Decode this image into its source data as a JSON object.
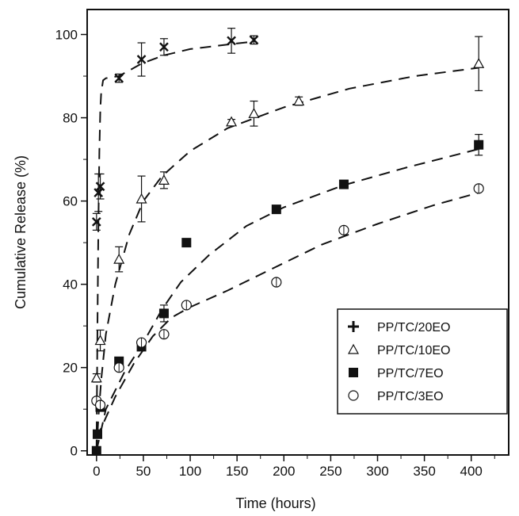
{
  "chart_data": {
    "type": "scatter",
    "title": "",
    "xlabel": "Time (hours)",
    "ylabel": "Cumulative Release (%)",
    "xlim": [
      -10,
      440
    ],
    "ylim": [
      -1,
      106
    ],
    "xticks": [
      0,
      50,
      100,
      150,
      200,
      250,
      300,
      350,
      400
    ],
    "yticks": [
      0,
      20,
      40,
      60,
      80,
      100
    ],
    "legend_position": "bottom-right",
    "series": [
      {
        "name": "PP/TC/20EO",
        "marker": "cross",
        "points": [
          {
            "x": 0,
            "y": 55,
            "err": 2
          },
          {
            "x": 2,
            "y": 62,
            "err": 4.5
          },
          {
            "x": 4,
            "y": 63.5,
            "err": 3
          },
          {
            "x": 24,
            "y": 89.5,
            "err": 1
          },
          {
            "x": 48,
            "y": 94,
            "err": 4
          },
          {
            "x": 72,
            "y": 97,
            "err": 2
          },
          {
            "x": 144,
            "y": 98.5,
            "err": 3
          },
          {
            "x": 168,
            "y": 98.7,
            "err": 1
          }
        ],
        "fit": [
          [
            0,
            0
          ],
          [
            1,
            30
          ],
          [
            2,
            55
          ],
          [
            3,
            72
          ],
          [
            4,
            82
          ],
          [
            5,
            86
          ],
          [
            7,
            89
          ],
          [
            10,
            89.5
          ],
          [
            24,
            90
          ],
          [
            48,
            93
          ],
          [
            72,
            95
          ],
          [
            100,
            96.5
          ],
          [
            144,
            97.7
          ],
          [
            168,
            98.3
          ]
        ]
      },
      {
        "name": "PP/TC/10EO",
        "marker": "triangle",
        "points": [
          {
            "x": 0,
            "y": 17.5,
            "err": 1
          },
          {
            "x": 4,
            "y": 26.5,
            "err": 2.5
          },
          {
            "x": 24,
            "y": 46,
            "err": 3
          },
          {
            "x": 48,
            "y": 60.5,
            "err": 5.5
          },
          {
            "x": 72,
            "y": 65,
            "err": 2
          },
          {
            "x": 144,
            "y": 79,
            "err": 0.6
          },
          {
            "x": 168,
            "y": 81,
            "err": 3
          },
          {
            "x": 216,
            "y": 84,
            "err": 1
          },
          {
            "x": 408,
            "y": 93,
            "err": 6.5
          }
        ],
        "fit": [
          [
            0,
            0
          ],
          [
            2,
            8
          ],
          [
            5,
            17
          ],
          [
            10,
            28
          ],
          [
            20,
            40
          ],
          [
            35,
            52
          ],
          [
            50,
            60
          ],
          [
            70,
            66
          ],
          [
            100,
            72
          ],
          [
            140,
            77.5
          ],
          [
            200,
            82.5
          ],
          [
            270,
            87
          ],
          [
            340,
            90
          ],
          [
            408,
            92
          ]
        ]
      },
      {
        "name": "PP/TC/7EO",
        "marker": "square",
        "points": [
          {
            "x": 0,
            "y": 0
          },
          {
            "x": 1,
            "y": 4
          },
          {
            "x": 4,
            "y": 10.5
          },
          {
            "x": 24,
            "y": 21.5
          },
          {
            "x": 48,
            "y": 25
          },
          {
            "x": 72,
            "y": 33,
            "err": 2
          },
          {
            "x": 96,
            "y": 50
          },
          {
            "x": 192,
            "y": 58
          },
          {
            "x": 264,
            "y": 64
          },
          {
            "x": 408,
            "y": 73.5,
            "err": 2.5
          }
        ],
        "fit": [
          [
            0,
            0
          ],
          [
            10,
            10
          ],
          [
            30,
            19
          ],
          [
            50,
            26
          ],
          [
            70,
            34
          ],
          [
            90,
            40.5
          ],
          [
            120,
            47
          ],
          [
            160,
            54
          ],
          [
            200,
            58.5
          ],
          [
            264,
            63.8
          ],
          [
            330,
            68
          ],
          [
            408,
            72.5
          ]
        ]
      },
      {
        "name": "PP/TC/3EO",
        "marker": "circle",
        "points": [
          {
            "x": 0,
            "y": 12
          },
          {
            "x": 4,
            "y": 11
          },
          {
            "x": 24,
            "y": 20
          },
          {
            "x": 48,
            "y": 26
          },
          {
            "x": 72,
            "y": 28
          },
          {
            "x": 96,
            "y": 35
          },
          {
            "x": 192,
            "y": 40.5
          },
          {
            "x": 264,
            "y": 53
          },
          {
            "x": 408,
            "y": 63
          }
        ],
        "fit": [
          [
            0,
            3
          ],
          [
            20,
            13
          ],
          [
            40,
            21
          ],
          [
            60,
            27.5
          ],
          [
            80,
            32
          ],
          [
            100,
            34.5
          ],
          [
            140,
            38.5
          ],
          [
            190,
            44
          ],
          [
            240,
            49.5
          ],
          [
            300,
            54.5
          ],
          [
            360,
            59
          ],
          [
            408,
            62
          ]
        ]
      }
    ]
  }
}
